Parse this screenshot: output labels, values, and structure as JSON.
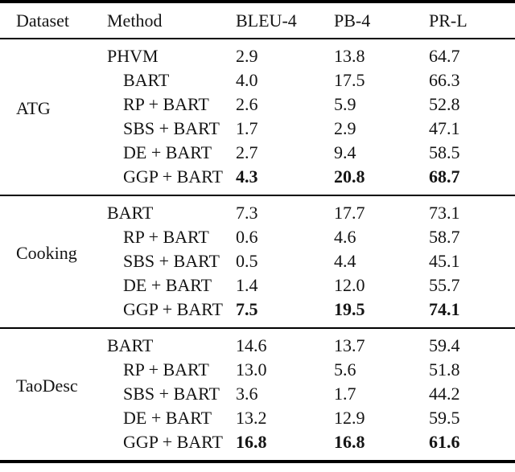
{
  "table": {
    "columns": [
      "Dataset",
      "Method",
      "BLEU-4",
      "PB-4",
      "PR-L"
    ],
    "groups": [
      {
        "dataset": "ATG",
        "rows": [
          {
            "method": "PHVM",
            "bleu4": "2.9",
            "pb4": "13.8",
            "prl": "64.7",
            "bold": false
          },
          {
            "method": "BART",
            "bleu4": "4.0",
            "pb4": "17.5",
            "prl": "66.3",
            "bold": false
          },
          {
            "method": "RP + BART",
            "bleu4": "2.6",
            "pb4": "5.9",
            "prl": "52.8",
            "bold": false
          },
          {
            "method": "SBS + BART",
            "bleu4": "1.7",
            "pb4": "2.9",
            "prl": "47.1",
            "bold": false
          },
          {
            "method": "DE + BART",
            "bleu4": "2.7",
            "pb4": "9.4",
            "prl": "58.5",
            "bold": false
          },
          {
            "method": "GGP + BART",
            "bleu4": "4.3",
            "pb4": "20.8",
            "prl": "68.7",
            "bold": true
          }
        ]
      },
      {
        "dataset": "Cooking",
        "rows": [
          {
            "method": "BART",
            "bleu4": "7.3",
            "pb4": "17.7",
            "prl": "73.1",
            "bold": false
          },
          {
            "method": "RP + BART",
            "bleu4": "0.6",
            "pb4": "4.6",
            "prl": "58.7",
            "bold": false
          },
          {
            "method": "SBS + BART",
            "bleu4": "0.5",
            "pb4": "4.4",
            "prl": "45.1",
            "bold": false
          },
          {
            "method": "DE + BART",
            "bleu4": "1.4",
            "pb4": "12.0",
            "prl": "55.7",
            "bold": false
          },
          {
            "method": "GGP + BART",
            "bleu4": "7.5",
            "pb4": "19.5",
            "prl": "74.1",
            "bold": true
          }
        ]
      },
      {
        "dataset": "TaoDesc",
        "rows": [
          {
            "method": "BART",
            "bleu4": "14.6",
            "pb4": "13.7",
            "prl": "59.4",
            "bold": false
          },
          {
            "method": "RP + BART",
            "bleu4": "13.0",
            "pb4": "5.6",
            "prl": "51.8",
            "bold": false
          },
          {
            "method": "SBS + BART",
            "bleu4": "3.6",
            "pb4": "1.7",
            "prl": "44.2",
            "bold": false
          },
          {
            "method": "DE + BART",
            "bleu4": "13.2",
            "pb4": "12.9",
            "prl": "59.5",
            "bold": false
          },
          {
            "method": "GGP + BART",
            "bleu4": "16.8",
            "pb4": "16.8",
            "prl": "61.6",
            "bold": true
          }
        ]
      }
    ]
  },
  "colors": {
    "text": "#141414",
    "rule": "#000000",
    "background": "#ffffff"
  }
}
